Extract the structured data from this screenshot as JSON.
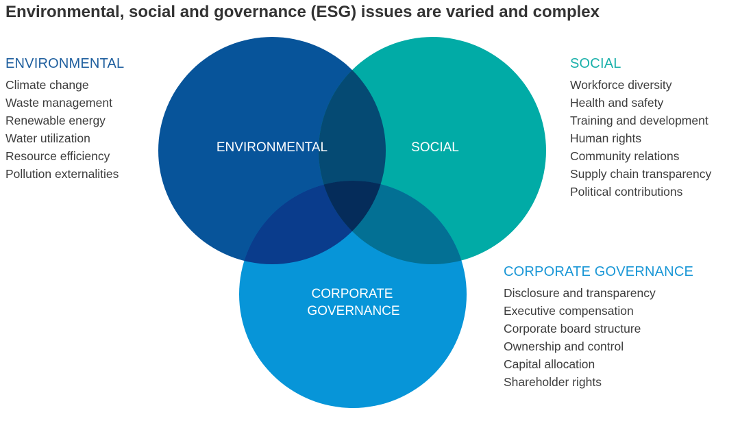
{
  "title": "Environmental, social and governance (ESG) issues are varied and complex",
  "colors": {
    "environmental": "#07549a",
    "social": "#01aba6",
    "governance": "#0795d8",
    "env_social_overlap": "#054a73",
    "env_gov_overlap": "#0a3c8c",
    "social_gov_overlap": "#037094",
    "center_overlap": "#052c5a",
    "environmental_heading": "#1f5f9e",
    "social_heading": "#1ab0aa",
    "governance_heading": "#1a97d6"
  },
  "diagram": {
    "circles": {
      "environmental": {
        "label": "ENVIRONMENTAL"
      },
      "social": {
        "label": "SOCIAL"
      },
      "governance": {
        "label_line1": "CORPORATE",
        "label_line2": "GOVERNANCE"
      }
    }
  },
  "panels": {
    "environmental": {
      "heading": "ENVIRONMENTAL",
      "items": [
        "Climate change",
        "Waste management",
        "Renewable energy",
        "Water utilization",
        "Resource efficiency",
        "Pollution externalities"
      ]
    },
    "social": {
      "heading": "SOCIAL",
      "items": [
        "Workforce diversity",
        "Health and safety",
        "Training and development",
        "Human rights",
        "Community relations",
        "Supply chain transparency",
        "Political contributions"
      ]
    },
    "governance": {
      "heading": "CORPORATE GOVERNANCE",
      "items": [
        "Disclosure and transparency",
        "Executive compensation",
        "Corporate board structure",
        "Ownership and control",
        "Capital allocation",
        "Shareholder rights"
      ]
    }
  }
}
